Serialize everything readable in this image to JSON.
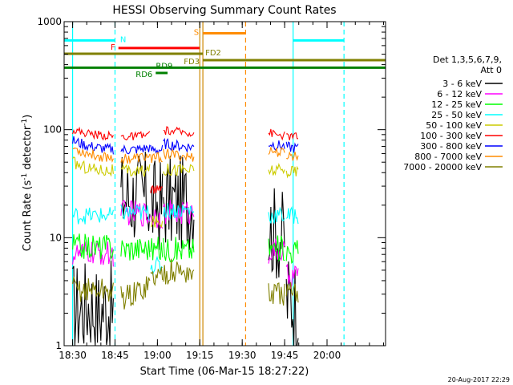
{
  "chart_data": {
    "type": "line",
    "title": "HESSI Observing Summary Count Rates",
    "xlabel": "Start Time (06-Mar-15 18:27:22)",
    "ylabel_main": "Count Rate (s",
    "ylabel_sup1": "-1",
    "ylabel_mid": " detector",
    "ylabel_sup2": "-1",
    "ylabel_end": ")",
    "y_scale": "log",
    "ylim": [
      1,
      1000
    ],
    "xlim": [
      18.45,
      20.345
    ],
    "x_ticks": [
      {
        "label": "18:30",
        "value": 18.5
      },
      {
        "label": "18:45",
        "value": 18.75
      },
      {
        "label": "19:00",
        "value": 19.0
      },
      {
        "label": "19:15",
        "value": 19.25
      },
      {
        "label": "19:30",
        "value": 19.5
      },
      {
        "label": "19:45",
        "value": 19.75
      },
      {
        "label": "20:00",
        "value": 20.0
      }
    ],
    "y_ticks": [
      {
        "label": "1",
        "value": 1
      },
      {
        "label": "10",
        "value": 10
      },
      {
        "label": "100",
        "value": 100
      },
      {
        "label": "1000",
        "value": 1000
      }
    ],
    "legend": {
      "placement": "right",
      "header1": "Det 1,3,5,6,7,9,",
      "header2": "Att 0"
    },
    "series": [
      {
        "name": "3 - 6 keV",
        "color": "#000000",
        "segments": [
          {
            "x": [
              18.5,
              18.55,
              18.6,
              18.65,
              18.7,
              18.74
            ],
            "y": [
              2.3,
              2.2,
              2.5,
              2.0,
              2.4,
              2.1
            ]
          },
          {
            "x": [
              18.785,
              18.85,
              18.9,
              18.955
            ],
            "y": [
              24,
              24,
              24,
              23
            ]
          },
          {
            "x": [
              18.96,
              19.03
            ],
            "y": [
              20,
              20
            ]
          },
          {
            "x": [
              19.035,
              19.1,
              19.15,
              19.215
            ],
            "y": [
              22,
              21,
              21,
              22
            ]
          },
          {
            "x": [
              19.655,
              19.7,
              19.75
            ],
            "y": [
              12,
              11,
              10
            ]
          },
          {
            "x": [
              19.76,
              19.8,
              19.83
            ],
            "y": [
              2.8,
              2.6,
              2.5
            ]
          }
        ]
      },
      {
        "name": "6 - 12 keV",
        "color": "#ff00ff",
        "segments": [
          {
            "x": [
              18.5,
              18.55,
              18.6,
              18.65,
              18.7,
              18.74
            ],
            "y": [
              7.0,
              7.0,
              7.3,
              7.0,
              7.1,
              7.0
            ]
          },
          {
            "x": [
              18.785,
              18.85,
              18.9,
              18.955
            ],
            "y": [
              17,
              17,
              17,
              16
            ]
          },
          {
            "x": [
              18.96,
              19.03
            ],
            "y": [
              16,
              16
            ]
          },
          {
            "x": [
              19.035,
              19.1,
              19.15,
              19.215
            ],
            "y": [
              17,
              17,
              17,
              17
            ]
          },
          {
            "x": [
              19.655,
              19.7,
              19.75
            ],
            "y": [
              7.5,
              7.5,
              7.5
            ]
          },
          {
            "x": [
              19.76,
              19.8,
              19.83
            ],
            "y": [
              4.3,
              4.5,
              4.5
            ]
          }
        ]
      },
      {
        "name": "12 - 25 keV",
        "color": "#00ff00",
        "segments": [
          {
            "x": [
              18.5,
              18.55,
              18.6,
              18.65,
              18.7,
              18.74
            ],
            "y": [
              8.5,
              8.3,
              8.3,
              8.2,
              8.3,
              8.1
            ]
          },
          {
            "x": [
              18.785,
              18.85,
              18.9,
              18.955
            ],
            "y": [
              8.0,
              8.0,
              8.0,
              8.0
            ]
          },
          {
            "x": [
              18.96,
              19.03
            ],
            "y": [
              7.8,
              7.8
            ]
          },
          {
            "x": [
              19.035,
              19.1,
              19.15,
              19.215
            ],
            "y": [
              7.8,
              7.8,
              7.8,
              7.8
            ]
          },
          {
            "x": [
              19.655,
              19.7,
              19.75
            ],
            "y": [
              8.0,
              8.0,
              8.0
            ]
          },
          {
            "x": [
              19.76,
              19.8,
              19.83
            ],
            "y": [
              7.5,
              7.5,
              7.5
            ]
          }
        ]
      },
      {
        "name": "25 - 50 keV",
        "color": "#00ffff",
        "segments": [
          {
            "x": [
              18.5,
              18.55,
              18.6,
              18.65,
              18.7,
              18.74
            ],
            "y": [
              16,
              16,
              16,
              16,
              16,
              16
            ]
          },
          {
            "x": [
              18.785,
              18.85,
              18.9,
              18.955
            ],
            "y": [
              17,
              17,
              17,
              17
            ]
          },
          {
            "x": [
              18.96,
              19.03
            ],
            "y": [
              5.5,
              5.5
            ]
          },
          {
            "x": [
              19.035,
              19.1,
              19.15,
              19.215
            ],
            "y": [
              18,
              18,
              18,
              18
            ]
          },
          {
            "x": [
              19.655,
              19.7,
              19.75
            ],
            "y": [
              16,
              16,
              16
            ]
          },
          {
            "x": [
              19.76,
              19.8,
              19.83
            ],
            "y": [
              16,
              16,
              16
            ]
          }
        ]
      },
      {
        "name": "50 - 100 keV",
        "color": "#cccc00",
        "segments": [
          {
            "x": [
              18.5,
              18.55,
              18.6,
              18.65,
              18.7,
              18.74
            ],
            "y": [
              50,
              46,
              44,
              43,
              42,
              42
            ]
          },
          {
            "x": [
              18.785,
              18.85,
              18.9,
              18.955
            ],
            "y": [
              41,
              41,
              41,
              42
            ]
          },
          {
            "x": [
              18.96,
              19.03
            ],
            "y": [
              14,
              14
            ]
          },
          {
            "x": [
              19.035,
              19.1,
              19.15,
              19.215
            ],
            "y": [
              43,
              43,
              43,
              42
            ]
          },
          {
            "x": [
              19.655,
              19.7,
              19.75
            ],
            "y": [
              42,
              42,
              41
            ]
          },
          {
            "x": [
              19.76,
              19.8,
              19.83
            ],
            "y": [
              41,
              41,
              41
            ]
          }
        ]
      },
      {
        "name": "100 - 300 keV",
        "color": "#ff0000",
        "segments": [
          {
            "x": [
              18.5,
              18.55,
              18.6,
              18.65,
              18.7,
              18.74
            ],
            "y": [
              100,
              95,
              92,
              90,
              88,
              87
            ]
          },
          {
            "x": [
              18.785,
              18.85,
              18.9,
              18.955
            ],
            "y": [
              86,
              86,
              87,
              90
            ]
          },
          {
            "x": [
              18.96,
              19.03
            ],
            "y": [
              28,
              28
            ]
          },
          {
            "x": [
              19.035,
              19.1,
              19.15,
              19.215
            ],
            "y": [
              98,
              96,
              95,
              94
            ]
          },
          {
            "x": [
              19.655,
              19.7,
              19.75
            ],
            "y": [
              95,
              90,
              88
            ]
          },
          {
            "x": [
              19.76,
              19.8,
              19.83
            ],
            "y": [
              87,
              87,
              86
            ]
          }
        ]
      },
      {
        "name": "300 - 800 keV",
        "color": "#0000ff",
        "segments": [
          {
            "x": [
              18.5,
              18.55,
              18.6,
              18.65,
              18.7,
              18.74
            ],
            "y": [
              79,
              74,
              70,
              68,
              66,
              66
            ]
          },
          {
            "x": [
              18.785,
              18.85,
              18.9,
              18.955
            ],
            "y": [
              65,
              65,
              66,
              68
            ]
          },
          {
            "x": [
              18.96,
              19.03
            ],
            "y": [
              65,
              65
            ]
          },
          {
            "x": [
              19.035,
              19.1,
              19.15,
              19.215
            ],
            "y": [
              74,
              72,
              70,
              69
            ]
          },
          {
            "x": [
              19.655,
              19.7,
              19.75
            ],
            "y": [
              75,
              72,
              70
            ]
          },
          {
            "x": [
              19.76,
              19.8,
              19.83
            ],
            "y": [
              69,
              68,
              67
            ]
          }
        ]
      },
      {
        "name": "800 - 7000 keV",
        "color": "#ff8c00",
        "segments": [
          {
            "x": [
              18.5,
              18.55,
              18.6,
              18.65,
              18.7,
              18.74
            ],
            "y": [
              68,
              63,
              60,
              57,
              56,
              55
            ]
          },
          {
            "x": [
              18.785,
              18.85,
              18.9,
              18.955
            ],
            "y": [
              54,
              54,
              55,
              57
            ]
          },
          {
            "x": [
              18.96,
              19.03
            ],
            "y": [
              55,
              55
            ]
          },
          {
            "x": [
              19.035,
              19.1,
              19.15,
              19.215
            ],
            "y": [
              60,
              58,
              57,
              55
            ]
          },
          {
            "x": [
              19.655,
              19.7,
              19.75
            ],
            "y": [
              65,
              62,
              60
            ]
          },
          {
            "x": [
              19.76,
              19.8,
              19.83
            ],
            "y": [
              58,
              57,
              57
            ]
          }
        ]
      },
      {
        "name": "7000 - 20000 keV",
        "color": "#808000",
        "segments": [
          {
            "x": [
              18.5,
              18.55,
              18.6,
              18.65,
              18.7,
              18.74
            ],
            "y": [
              3.4,
              3.3,
              3.3,
              3.3,
              3.2,
              3.2
            ]
          },
          {
            "x": [
              18.785,
              18.85,
              18.9,
              18.955
            ],
            "y": [
              2.8,
              2.9,
              3.3,
              3.8
            ]
          },
          {
            "x": [
              18.96,
              19.03
            ],
            "y": [
              4.3,
              4.5
            ]
          },
          {
            "x": [
              19.035,
              19.1,
              19.15,
              19.215
            ],
            "y": [
              4.8,
              4.9,
              4.8,
              4.7
            ]
          },
          {
            "x": [
              19.655,
              19.7,
              19.75
            ],
            "y": [
              3.0,
              3.0,
              3.0
            ]
          },
          {
            "x": [
              19.76,
              19.8,
              19.83
            ],
            "y": [
              3.0,
              3.0,
              3.0
            ]
          }
        ]
      }
    ],
    "flag_bars": [
      {
        "label": "N",
        "color": "#00ffff",
        "y": 670,
        "segments": [
          [
            18.45,
            18.75
          ],
          [
            19.8,
            20.1
          ]
        ]
      },
      {
        "label": "F",
        "color": "#ff0000",
        "y": 570,
        "segments": [
          [
            18.77,
            19.248
          ]
        ]
      },
      {
        "label": "S",
        "color": "#ff8c00",
        "y": 780,
        "segments": [
          [
            19.268,
            19.52
          ]
        ]
      },
      {
        "label": "FD2",
        "color": "#808000",
        "y": 505,
        "segments": [
          [
            18.45,
            19.268
          ]
        ]
      },
      {
        "label": "FD3",
        "color": "#808000",
        "y": 440,
        "segments": [
          [
            19.268,
            20.345
          ]
        ]
      },
      {
        "label": "RD9",
        "color": "#008000",
        "y": 375,
        "segments": [
          [
            18.45,
            20.345
          ]
        ]
      },
      {
        "label": "RD6",
        "color": "#008000",
        "y": 335,
        "segments": [
          [
            18.99,
            19.06
          ]
        ]
      }
    ],
    "vertical_lines": [
      {
        "x": 18.75,
        "color": "#00ffff",
        "style": "dashed"
      },
      {
        "x": 18.5,
        "color": "#00ffff",
        "style": "solid"
      },
      {
        "x": 19.8,
        "color": "#00ffff",
        "style": "solid"
      },
      {
        "x": 20.1,
        "color": "#00ffff",
        "style": "dashed"
      },
      {
        "x": 19.25,
        "color": "#cc8800",
        "style": "solid"
      },
      {
        "x": 19.268,
        "color": "#cc8800",
        "style": "solid"
      },
      {
        "x": 19.52,
        "color": "#ff8c00",
        "style": "dashed"
      }
    ]
  },
  "footer": {
    "date_stamp": "20-Aug-2017 22:29"
  }
}
